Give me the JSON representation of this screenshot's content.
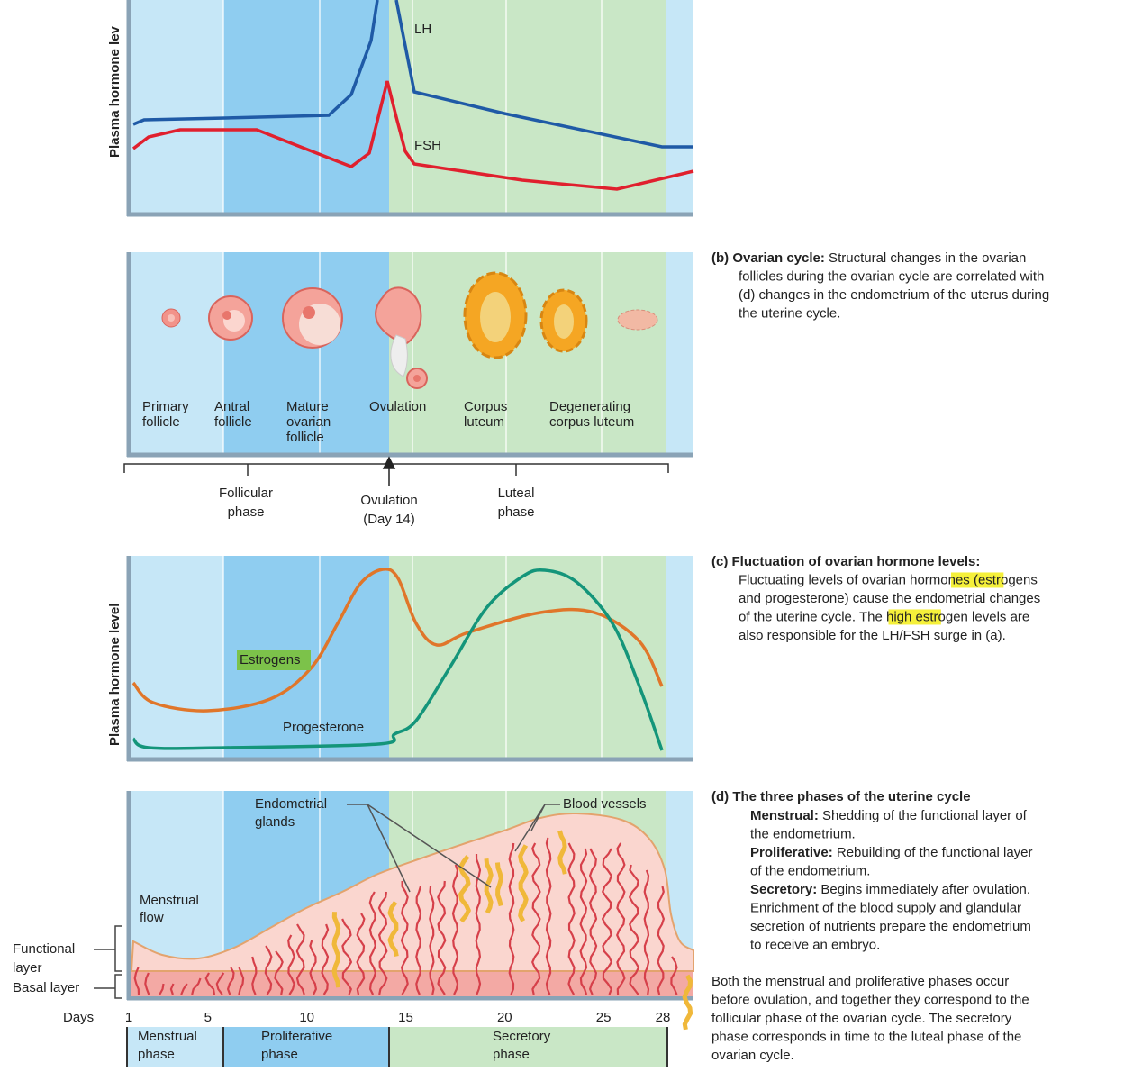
{
  "panel_a": {
    "y_label": "Plasma hormone lev",
    "lh_label": "LH",
    "fsh_label": "FSH"
  },
  "panel_b": {
    "stages": [
      [
        "Primary",
        "follicle"
      ],
      [
        "Antral",
        "follicle"
      ],
      [
        "Mature",
        "ovarian",
        "follicle"
      ],
      [
        "Ovulation"
      ],
      [
        "Corpus",
        "luteum"
      ],
      [
        "Degenerating",
        "corpus luteum"
      ]
    ],
    "phases": [
      [
        "Follicular",
        "phase"
      ],
      [
        "Ovulation",
        "(Day 14)"
      ],
      [
        "Luteal",
        "phase"
      ]
    ],
    "caption": [
      [
        {
          "text": "(b) Ovarian cycle:",
          "bold": true
        },
        " Structural changes in the ovarian"
      ],
      [
        "follicles during the ovarian cycle are correlated with"
      ],
      [
        "(d) changes in the endometrium of the uterus during"
      ],
      [
        "the uterine cycle."
      ]
    ]
  },
  "panel_c": {
    "y_label": "Plasma hormone level",
    "estrogens_label": "Estrogens",
    "progesterone_label": "Progesterone",
    "caption": [
      [
        {
          "text": "(c) Fluctuation of ovarian hormone levels:",
          "bold": true
        }
      ],
      [
        "Fluctuating levels of ovarian hormones (",
        {
          "text": "estrogen",
          "highlight": true
        },
        "s"
      ],
      [
        "and progesterone) cause the endometrial changes"
      ],
      [
        "of the uterine cycle. The high ",
        {
          "text": "estrogen",
          "highlight": true
        },
        " levels are"
      ],
      [
        "also responsible for the LH/FSH surge in (a)."
      ]
    ]
  },
  "panel_d": {
    "glands_label": [
      "Endometrial",
      "glands"
    ],
    "vessels_label": [
      "Blood vessels"
    ],
    "flow_label": [
      "Menstrual",
      "flow"
    ],
    "functional_label": [
      "Functional",
      "layer"
    ],
    "basal_label": [
      "Basal layer"
    ],
    "days_label": "Days",
    "days": [
      1,
      5,
      10,
      15,
      20,
      25,
      28
    ],
    "phases": [
      [
        "Menstrual",
        "phase"
      ],
      [
        "Proliferative",
        "phase"
      ],
      [
        "Secretory",
        "phase"
      ]
    ],
    "caption_title": [
      [
        {
          "text": "(d) The three phases of the uterine cycle",
          "bold": true
        }
      ]
    ],
    "caption_items": [
      [
        {
          "text": "Menstrual:",
          "bold": true
        },
        " Shedding of the functional layer of"
      ],
      [
        "the endometrium."
      ],
      [
        {
          "text": "Proliferative:",
          "bold": true
        },
        " Rebuilding of the functional layer"
      ],
      [
        "of the endometrium."
      ],
      [
        {
          "text": "Secretory:",
          "bold": true
        },
        " Begins immediately after ovulation."
      ],
      [
        "Enrichment of the blood supply and glandular"
      ],
      [
        "secretion of nutrients prepare the endometrium"
      ],
      [
        "to receive an embryo."
      ]
    ],
    "caption_note": [
      [
        "Both the menstrual and proliferative phases occur"
      ],
      [
        "before ovulation, and together they correspond to the"
      ],
      [
        "follicular phase of the ovarian cycle. The secretory"
      ],
      [
        "phase corresponds in time to the luteal phase of the"
      ],
      [
        "ovarian cycle."
      ]
    ]
  }
}
